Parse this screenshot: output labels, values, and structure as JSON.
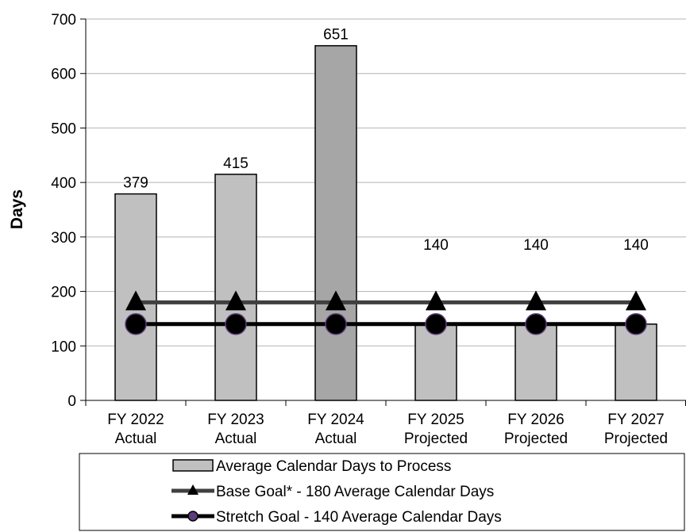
{
  "chart_data": {
    "type": "bar",
    "categories": [
      [
        "FY 2022",
        "Actual"
      ],
      [
        "FY 2023",
        "Actual"
      ],
      [
        "FY 2024",
        "Actual"
      ],
      [
        "FY 2025",
        "Projected"
      ],
      [
        "FY 2026",
        "Projected"
      ],
      [
        "FY 2027",
        "Projected"
      ]
    ],
    "ylabel": "Days",
    "ylim": [
      0,
      700
    ],
    "yticks": [
      0,
      100,
      200,
      300,
      400,
      500,
      600,
      700
    ],
    "grid": true,
    "legend_position": "bottom",
    "series": [
      {
        "name": "Average Calendar Days to Process",
        "kind": "bar",
        "values": [
          379,
          415,
          651,
          140,
          140,
          140
        ],
        "data_labels": [
          "379",
          "415",
          "651",
          "140",
          "140",
          "140"
        ],
        "colors": [
          "#c0c0c0",
          "#c0c0c0",
          "#a6a6a6",
          "#c0c0c0",
          "#c0c0c0",
          "#c0c0c0"
        ]
      },
      {
        "name": "Base Goal* - 180 Average Calendar Days",
        "kind": "line",
        "marker": "triangle",
        "values": [
          180,
          180,
          180,
          180,
          180,
          180
        ],
        "color": "#404040"
      },
      {
        "name": "Stretch Goal - 140 Average Calendar Days",
        "kind": "line",
        "marker": "circle",
        "values": [
          140,
          140,
          140,
          140,
          140,
          140
        ],
        "color": "#000000",
        "marker_edge": "#5a3d7a"
      }
    ]
  }
}
